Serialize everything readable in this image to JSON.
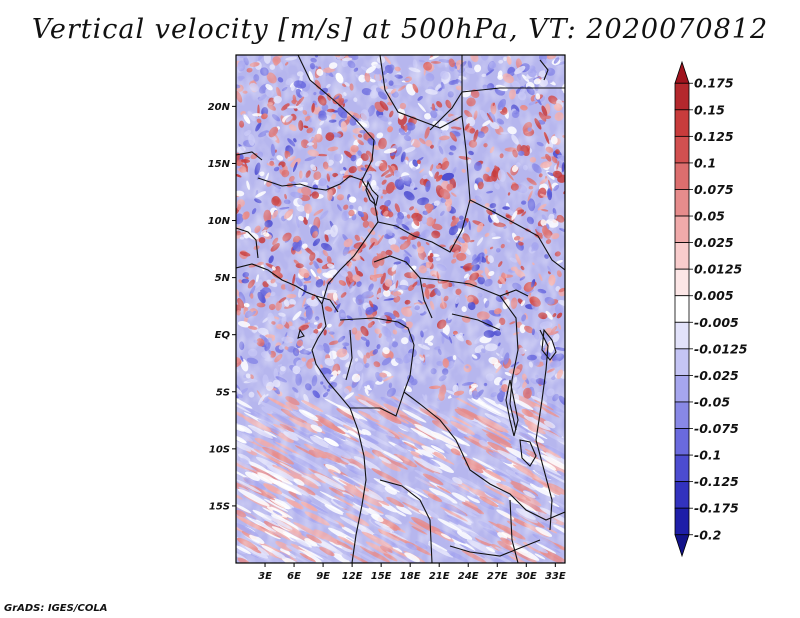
{
  "title": "Vertical velocity [m/s] at 500hPa, VT: 2020070812",
  "footer": "GrADS: IGES/COLA",
  "map": {
    "lon_range": [
      0,
      34
    ],
    "lat_range": [
      -20,
      24.5
    ],
    "lat_ticks": [
      "20N",
      "15N",
      "10N",
      "5N",
      "EQ",
      "5S",
      "10S",
      "15S"
    ],
    "lat_values": [
      20,
      15,
      10,
      5,
      0,
      -5,
      -10,
      -15
    ],
    "lon_ticks": [
      "3E",
      "6E",
      "9E",
      "12E",
      "15E",
      "18E",
      "21E",
      "24E",
      "27E",
      "30E",
      "33E"
    ],
    "lon_values": [
      3,
      6,
      9,
      12,
      15,
      18,
      21,
      24,
      27,
      30,
      33
    ]
  },
  "colorbar": {
    "labels": [
      "0.175",
      "0.15",
      "0.125",
      "0.1",
      "0.075",
      "0.05",
      "0.025",
      "0.0125",
      "0.005",
      "-0.005",
      "-0.0125",
      "-0.025",
      "-0.05",
      "-0.075",
      "-0.1",
      "-0.125",
      "-0.175",
      "-0.2"
    ],
    "colors": [
      "#a0141e",
      "#b4282d",
      "#c83c3c",
      "#d25050",
      "#dc6e6e",
      "#e68c8c",
      "#f0aaaa",
      "#f8cccc",
      "#fce6e6",
      "#ffffff",
      "#e2e2fa",
      "#c4c4f4",
      "#a6a6ee",
      "#8888e6",
      "#6a6ade",
      "#4c4cd0",
      "#3232be",
      "#1e1ea8",
      "#12128a"
    ]
  }
}
